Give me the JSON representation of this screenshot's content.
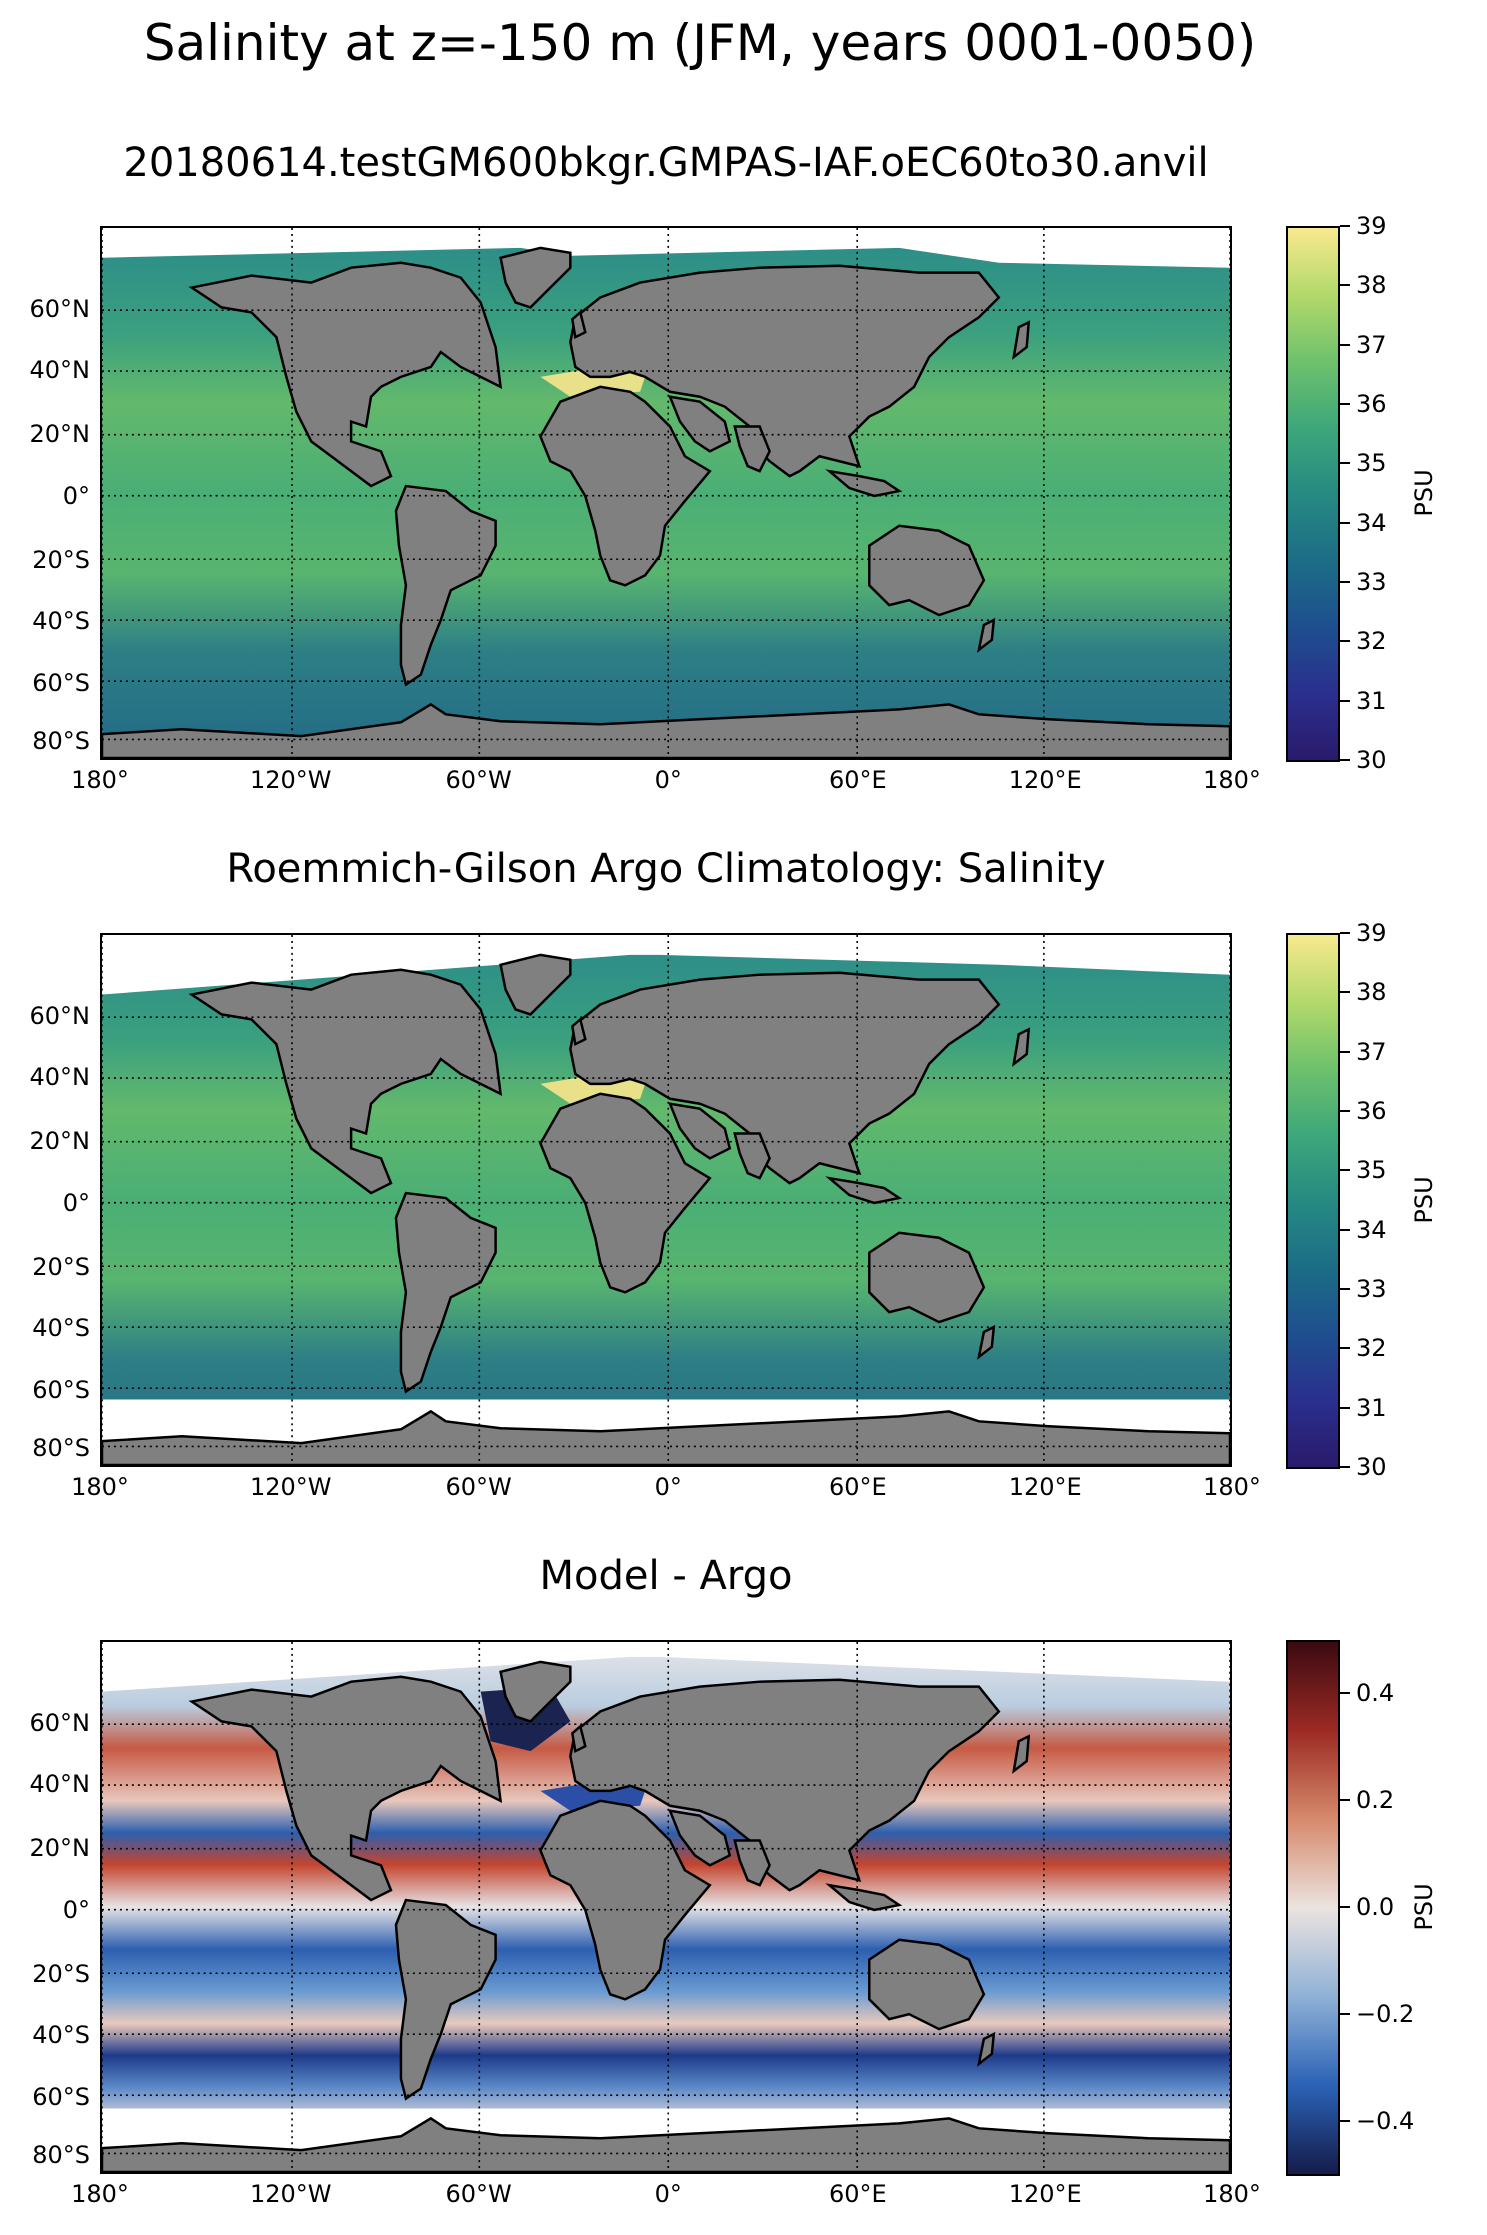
{
  "title": "Salinity at z=-150 m (JFM, years 0001-0050)",
  "lat_labels": [
    "60°N",
    "40°N",
    "20°N",
    "0°",
    "20°S",
    "40°S",
    "60°S",
    "80°S"
  ],
  "lon_labels": [
    "180°",
    "120°W",
    "60°W",
    "0°",
    "60°E",
    "120°E",
    "180°"
  ],
  "panels": [
    {
      "title": "20180614.testGM600bkgr.GMPAS-IAF.oEC60to30.anvil",
      "colorbar": {
        "label": "PSU",
        "ticks": [
          "39",
          "38",
          "37",
          "36",
          "35",
          "34",
          "33",
          "32",
          "31",
          "30"
        ],
        "range": [
          30,
          39
        ],
        "colormap": "haline",
        "colors": [
          "#f8e98f",
          "#b3d96b",
          "#6fc16c",
          "#3ea77a",
          "#268a82",
          "#1c6d86",
          "#1e4f8f",
          "#2a2f8e",
          "#2a1a6b"
        ]
      }
    },
    {
      "title": "Roemmich-Gilson Argo Climatology: Salinity",
      "colorbar": {
        "label": "PSU",
        "ticks": [
          "39",
          "38",
          "37",
          "36",
          "35",
          "34",
          "33",
          "32",
          "31",
          "30"
        ],
        "range": [
          30,
          39
        ],
        "colormap": "haline",
        "colors": [
          "#f8e98f",
          "#b3d96b",
          "#6fc16c",
          "#3ea77a",
          "#268a82",
          "#1c6d86",
          "#1e4f8f",
          "#2a2f8e",
          "#2a1a6b"
        ]
      }
    },
    {
      "title": "Model - Argo",
      "colorbar": {
        "label": "PSU",
        "ticks": [
          "0.4",
          "0.2",
          "0.0",
          "−0.2",
          "−0.4"
        ],
        "range": [
          -0.5,
          0.5
        ],
        "colormap": "balance",
        "colors": [
          "#3b0a12",
          "#9c2a23",
          "#d68a6c",
          "#ebe3df",
          "#8fb1d6",
          "#2b62b6",
          "#141c4a"
        ]
      }
    }
  ],
  "chart_data": [
    {
      "type": "heatmap",
      "title": "20180614.testGM600bkgr.GMPAS-IAF.oEC60to30.anvil",
      "xlim": [
        -180,
        180
      ],
      "ylim": [
        -85,
        85
      ],
      "colorbar_range": [
        30,
        39
      ],
      "unit": "PSU",
      "grid": true
    },
    {
      "type": "heatmap",
      "title": "Roemmich-Gilson Argo Climatology: Salinity",
      "xlim": [
        -180,
        180
      ],
      "ylim": [
        -85,
        85
      ],
      "colorbar_range": [
        30,
        39
      ],
      "unit": "PSU",
      "grid": true
    },
    {
      "type": "heatmap",
      "title": "Model - Argo",
      "xlim": [
        -180,
        180
      ],
      "ylim": [
        -85,
        85
      ],
      "colorbar_range": [
        -0.5,
        0.5
      ],
      "unit": "PSU",
      "grid": true
    }
  ],
  "colors": {
    "land": "#808080",
    "no_data": "#ffffff"
  }
}
